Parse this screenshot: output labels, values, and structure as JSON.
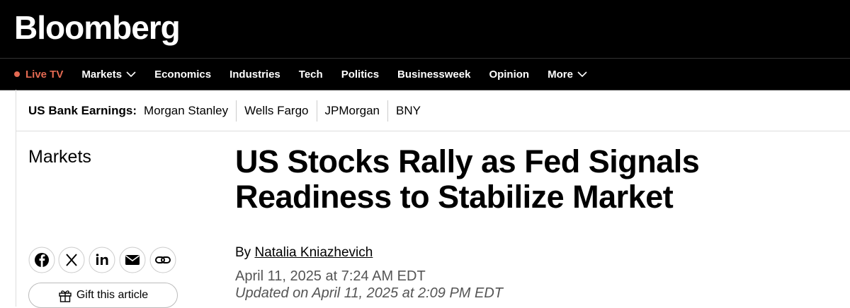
{
  "header": {
    "logo": "Bloomberg"
  },
  "nav": {
    "live": "Live TV",
    "items": [
      "Markets",
      "Economics",
      "Industries",
      "Tech",
      "Politics",
      "Businessweek",
      "Opinion",
      "More"
    ]
  },
  "ticker": {
    "label": "US Bank Earnings:",
    "links": [
      "Morgan Stanley",
      "Wells Fargo",
      "JPMorgan",
      "BNY"
    ]
  },
  "article": {
    "section": "Markets",
    "headline": "US Stocks Rally as Fed Signals Readiness to Stabilize Market",
    "byline_prefix": "By",
    "author": "Natalia Kniazhevich",
    "published": "April 11, 2025 at 7:24 AM EDT",
    "updated": "Updated on April 11, 2025 at 2:09 PM EDT",
    "gift": "Gift this article"
  }
}
